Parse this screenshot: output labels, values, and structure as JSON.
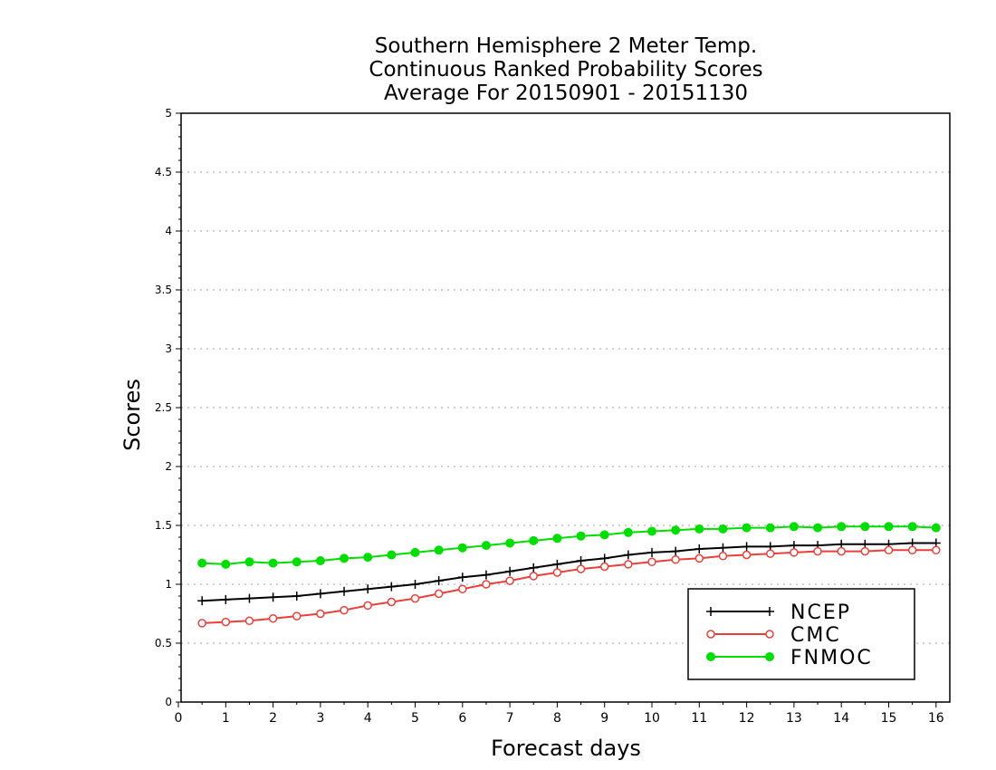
{
  "chart_data": {
    "type": "line",
    "title": [
      "Southern Hemisphere 2 Meter Temp.",
      "Continuous Ranked Probability Scores",
      "Average For 20150901 - 20151130"
    ],
    "xlabel": "Forecast days",
    "ylabel": "Scores",
    "xlim": [
      0,
      16.1
    ],
    "ylim": [
      0,
      5
    ],
    "xticks": [
      "0",
      "1",
      "2",
      "3",
      "4",
      "5",
      "6",
      "7",
      "8",
      "9",
      "10",
      "11",
      "12",
      "13",
      "14",
      "15",
      "16"
    ],
    "yticks": [
      "0",
      "0.5",
      "1",
      "1.5",
      "2",
      "2.5",
      "3",
      "3.5",
      "4",
      "4.5",
      "5"
    ],
    "grid": "horizontal dotted",
    "legend_position": "bottom-right",
    "x": [
      0.5,
      1,
      1.5,
      2,
      2.5,
      3,
      3.5,
      4,
      4.5,
      5,
      5.5,
      6,
      6.5,
      7,
      7.5,
      8,
      8.5,
      9,
      9.5,
      10,
      10.5,
      11,
      11.5,
      12,
      12.5,
      13,
      13.5,
      14,
      14.5,
      15,
      15.5,
      16
    ],
    "series": [
      {
        "name": "NCEP",
        "color": "#000000",
        "marker": "plus",
        "values": [
          0.86,
          0.87,
          0.88,
          0.89,
          0.9,
          0.92,
          0.94,
          0.96,
          0.98,
          1.0,
          1.03,
          1.06,
          1.08,
          1.11,
          1.14,
          1.17,
          1.2,
          1.22,
          1.25,
          1.27,
          1.28,
          1.3,
          1.31,
          1.32,
          1.32,
          1.33,
          1.33,
          1.34,
          1.34,
          1.34,
          1.35,
          1.35
        ]
      },
      {
        "name": "CMC",
        "color": "#e8403a",
        "marker": "open-circle",
        "values": [
          0.67,
          0.68,
          0.69,
          0.71,
          0.73,
          0.75,
          0.78,
          0.82,
          0.85,
          0.88,
          0.92,
          0.96,
          1.0,
          1.03,
          1.07,
          1.1,
          1.13,
          1.15,
          1.17,
          1.19,
          1.21,
          1.22,
          1.24,
          1.25,
          1.26,
          1.27,
          1.28,
          1.28,
          1.28,
          1.29,
          1.29,
          1.29
        ]
      },
      {
        "name": "FNMOC",
        "color": "#00dd00",
        "marker": "filled-circle",
        "values": [
          1.18,
          1.17,
          1.19,
          1.18,
          1.19,
          1.2,
          1.22,
          1.23,
          1.25,
          1.27,
          1.29,
          1.31,
          1.33,
          1.35,
          1.37,
          1.39,
          1.41,
          1.42,
          1.44,
          1.45,
          1.46,
          1.47,
          1.47,
          1.48,
          1.48,
          1.49,
          1.48,
          1.49,
          1.49,
          1.49,
          1.49,
          1.48
        ]
      }
    ]
  }
}
